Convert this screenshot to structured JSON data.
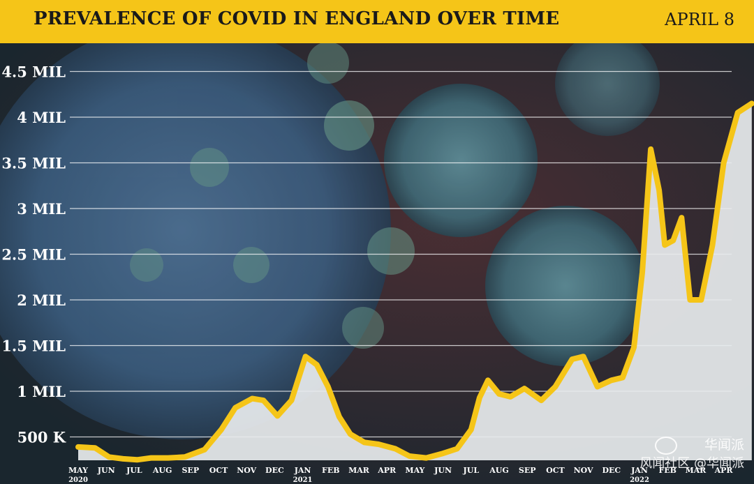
{
  "header": {
    "title": "PREVALENCE OF COVID IN ENGLAND OVER TIME",
    "date": "APRIL 8"
  },
  "watermark": {
    "line1": "华闻派",
    "line2": "风闻社区 @华闻派"
  },
  "colors": {
    "accent": "#f5c518",
    "line": "#f5c518",
    "area": "#e8ecee",
    "background": "#1c2a33",
    "grid": "#ffffff"
  },
  "chart_data": {
    "type": "area",
    "title": "PREVALENCE OF COVID IN ENGLAND OVER TIME",
    "xlabel": "",
    "ylabel": "",
    "ylim": [
      250000,
      4750000
    ],
    "grid": true,
    "y_ticks": [
      {
        "value": 500000,
        "label": "500 K"
      },
      {
        "value": 1000000,
        "label": "1 MIL"
      },
      {
        "value": 1500000,
        "label": "1.5 MIL"
      },
      {
        "value": 2000000,
        "label": "2 MIL"
      },
      {
        "value": 2500000,
        "label": "2.5 MIL"
      },
      {
        "value": 3000000,
        "label": "3 MIL"
      },
      {
        "value": 3500000,
        "label": "3.5 MIL"
      },
      {
        "value": 4000000,
        "label": "4 MIL"
      },
      {
        "value": 4500000,
        "label": "4.5 MIL"
      }
    ],
    "x_ticks": [
      {
        "t": 0.0,
        "label": "MAY",
        "sub": "2020"
      },
      {
        "t": 1.0,
        "label": "JUN"
      },
      {
        "t": 2.0,
        "label": "JUL"
      },
      {
        "t": 3.0,
        "label": "AUG"
      },
      {
        "t": 4.0,
        "label": "SEP"
      },
      {
        "t": 5.0,
        "label": "OCT"
      },
      {
        "t": 6.0,
        "label": "NOV"
      },
      {
        "t": 7.0,
        "label": "DEC"
      },
      {
        "t": 8.0,
        "label": "JAN",
        "sub": "2021"
      },
      {
        "t": 9.0,
        "label": "FEB"
      },
      {
        "t": 10.0,
        "label": "MAR"
      },
      {
        "t": 11.0,
        "label": "APR"
      },
      {
        "t": 12.0,
        "label": "MAY"
      },
      {
        "t": 13.0,
        "label": "JUN"
      },
      {
        "t": 14.0,
        "label": "JUL"
      },
      {
        "t": 15.0,
        "label": "AUG"
      },
      {
        "t": 16.0,
        "label": "SEP"
      },
      {
        "t": 17.0,
        "label": "OCT"
      },
      {
        "t": 18.0,
        "label": "NOV"
      },
      {
        "t": 19.0,
        "label": "DEC"
      },
      {
        "t": 20.0,
        "label": "JAN",
        "sub": "2022"
      },
      {
        "t": 21.0,
        "label": "FEB"
      },
      {
        "t": 22.0,
        "label": "MAR"
      },
      {
        "t": 23.0,
        "label": "APR"
      }
    ],
    "series": [
      {
        "points": [
          [
            0.0,
            390000
          ],
          [
            0.6,
            380000
          ],
          [
            1.1,
            280000
          ],
          [
            1.6,
            260000
          ],
          [
            2.1,
            250000
          ],
          [
            2.6,
            270000
          ],
          [
            3.2,
            270000
          ],
          [
            3.8,
            280000
          ],
          [
            4.5,
            360000
          ],
          [
            5.1,
            580000
          ],
          [
            5.6,
            820000
          ],
          [
            6.2,
            920000
          ],
          [
            6.6,
            900000
          ],
          [
            7.1,
            730000
          ],
          [
            7.6,
            900000
          ],
          [
            8.1,
            1380000
          ],
          [
            8.5,
            1290000
          ],
          [
            8.9,
            1050000
          ],
          [
            9.3,
            720000
          ],
          [
            9.7,
            530000
          ],
          [
            10.2,
            440000
          ],
          [
            10.7,
            420000
          ],
          [
            11.3,
            370000
          ],
          [
            11.8,
            290000
          ],
          [
            12.4,
            270000
          ],
          [
            13.0,
            320000
          ],
          [
            13.5,
            370000
          ],
          [
            14.0,
            580000
          ],
          [
            14.3,
            930000
          ],
          [
            14.6,
            1120000
          ],
          [
            15.0,
            970000
          ],
          [
            15.4,
            940000
          ],
          [
            15.9,
            1030000
          ],
          [
            16.5,
            900000
          ],
          [
            17.0,
            1050000
          ],
          [
            17.6,
            1350000
          ],
          [
            18.0,
            1380000
          ],
          [
            18.5,
            1050000
          ],
          [
            19.0,
            1120000
          ],
          [
            19.4,
            1150000
          ],
          [
            19.8,
            1480000
          ],
          [
            20.1,
            2300000
          ],
          [
            20.4,
            3650000
          ],
          [
            20.7,
            3200000
          ],
          [
            20.9,
            2600000
          ],
          [
            21.2,
            2650000
          ],
          [
            21.5,
            2900000
          ],
          [
            21.8,
            2000000
          ],
          [
            22.2,
            2000000
          ],
          [
            22.6,
            2600000
          ],
          [
            23.0,
            3500000
          ],
          [
            23.5,
            4050000
          ],
          [
            24.0,
            4150000
          ]
        ]
      }
    ]
  }
}
